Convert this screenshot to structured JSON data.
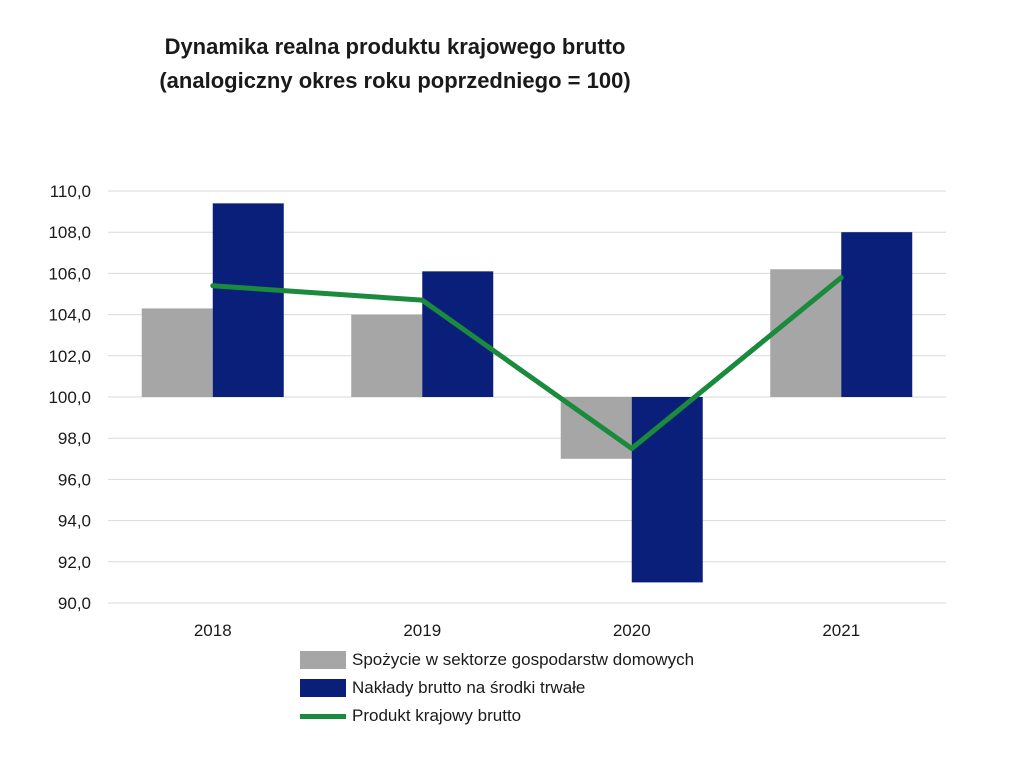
{
  "title": {
    "line1": "Dynamika realna produktu krajowego brutto",
    "line2": "(analogiczny okres roku poprzedniego = 100)"
  },
  "chart_data": {
    "type": "bar",
    "categories": [
      "2018",
      "2019",
      "2020",
      "2021"
    ],
    "baseline": 100,
    "ylim": [
      90,
      110
    ],
    "yticks": [
      "90,0",
      "92,0",
      "94,0",
      "96,0",
      "98,0",
      "100,0",
      "102,0",
      "104,0",
      "106,0",
      "108,0",
      "110,0"
    ],
    "grid": true,
    "legend_position": "bottom",
    "series": [
      {
        "name": "Spożycie w sektorze gospodarstw domowych",
        "type": "bar",
        "color": "#a6a6a6",
        "values": [
          104.3,
          104.0,
          97.0,
          106.2
        ]
      },
      {
        "name": "Nakłady brutto na środki trwałe",
        "type": "bar",
        "color": "#0a1f7a",
        "values": [
          109.4,
          106.1,
          91.0,
          108.0
        ]
      },
      {
        "name": "Produkt krajowy brutto",
        "type": "line",
        "color": "#1a8a3c",
        "values": [
          105.4,
          104.7,
          97.5,
          105.8
        ]
      }
    ]
  }
}
